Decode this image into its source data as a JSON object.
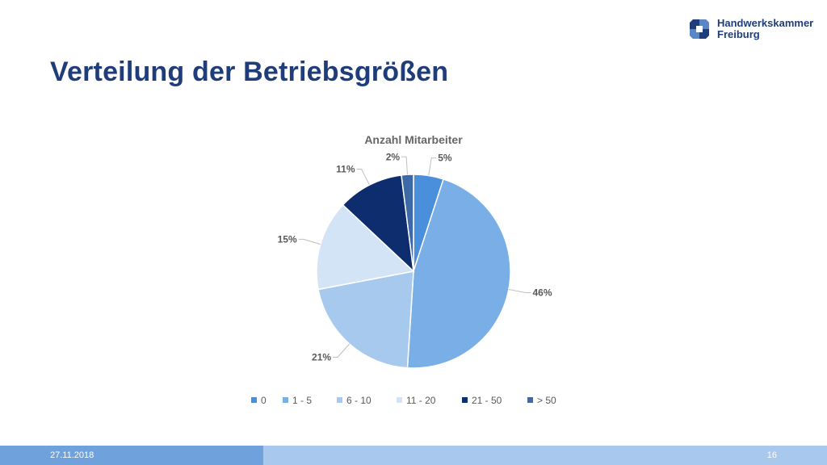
{
  "slide": {
    "title": "Verteilung der Betriebsgrößen"
  },
  "logo": {
    "line1": "Handwerkskammer",
    "line2": "Freiburg",
    "color_primary": "#1f3d7a",
    "color_secondary": "#5b86c4"
  },
  "footer": {
    "date": "27.11.2018",
    "page": "16"
  },
  "chart_data": {
    "type": "pie",
    "title": "Anzahl Mitarbeiter",
    "legend_position": "bottom",
    "categories": [
      "0",
      "1 - 5",
      "6 - 10",
      "11 - 20",
      "21 - 50",
      "> 50"
    ],
    "values": [
      5,
      46,
      21,
      15,
      11,
      2
    ],
    "labels": [
      "5%",
      "46%",
      "21%",
      "15%",
      "11%",
      "2%"
    ],
    "colors": [
      "#4a8fdc",
      "#7aaee6",
      "#a7c9ee",
      "#d3e4f7",
      "#0d2d6e",
      "#3d6aa6"
    ]
  }
}
